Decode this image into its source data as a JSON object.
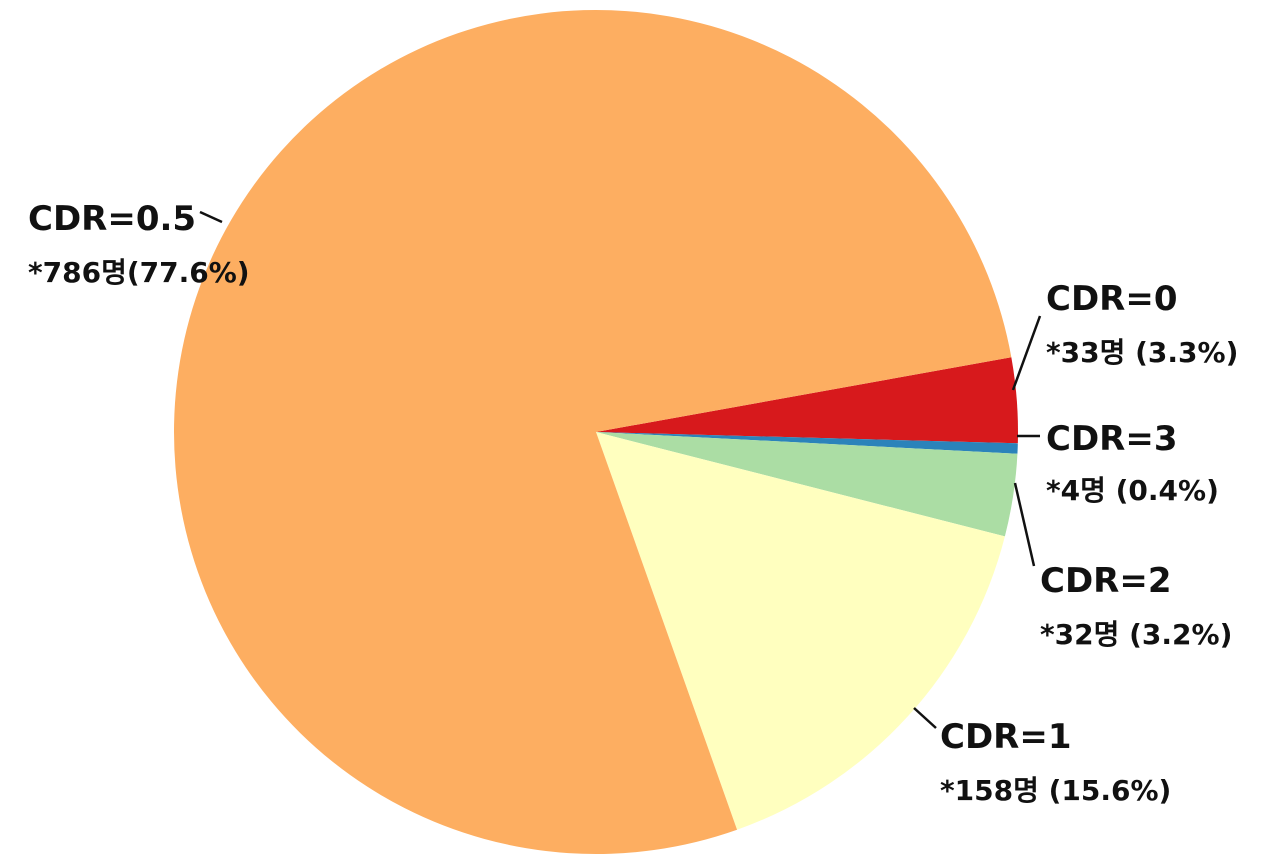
{
  "chart_data": {
    "type": "pie",
    "title": "",
    "slices": [
      {
        "label": "CDR=0",
        "value_text": "*33명 (3.3%)",
        "count": 33,
        "percent": 3.3,
        "color": "#d7191c"
      },
      {
        "label": "CDR=3",
        "value_text": "*4명 (0.4%)",
        "count": 4,
        "percent": 0.4,
        "color": "#2b83ba"
      },
      {
        "label": "CDR=2",
        "value_text": "*32명 (3.2%)",
        "count": 32,
        "percent": 3.2,
        "color": "#abdda4"
      },
      {
        "label": "CDR=1",
        "value_text": "*158명 (15.6%)",
        "count": 158,
        "percent": 15.6,
        "color": "#ffffbf"
      },
      {
        "label": "CDR=0.5",
        "value_text": "*786명(77.6%)",
        "count": 786,
        "percent": 77.6,
        "color": "#fdae61"
      }
    ]
  }
}
